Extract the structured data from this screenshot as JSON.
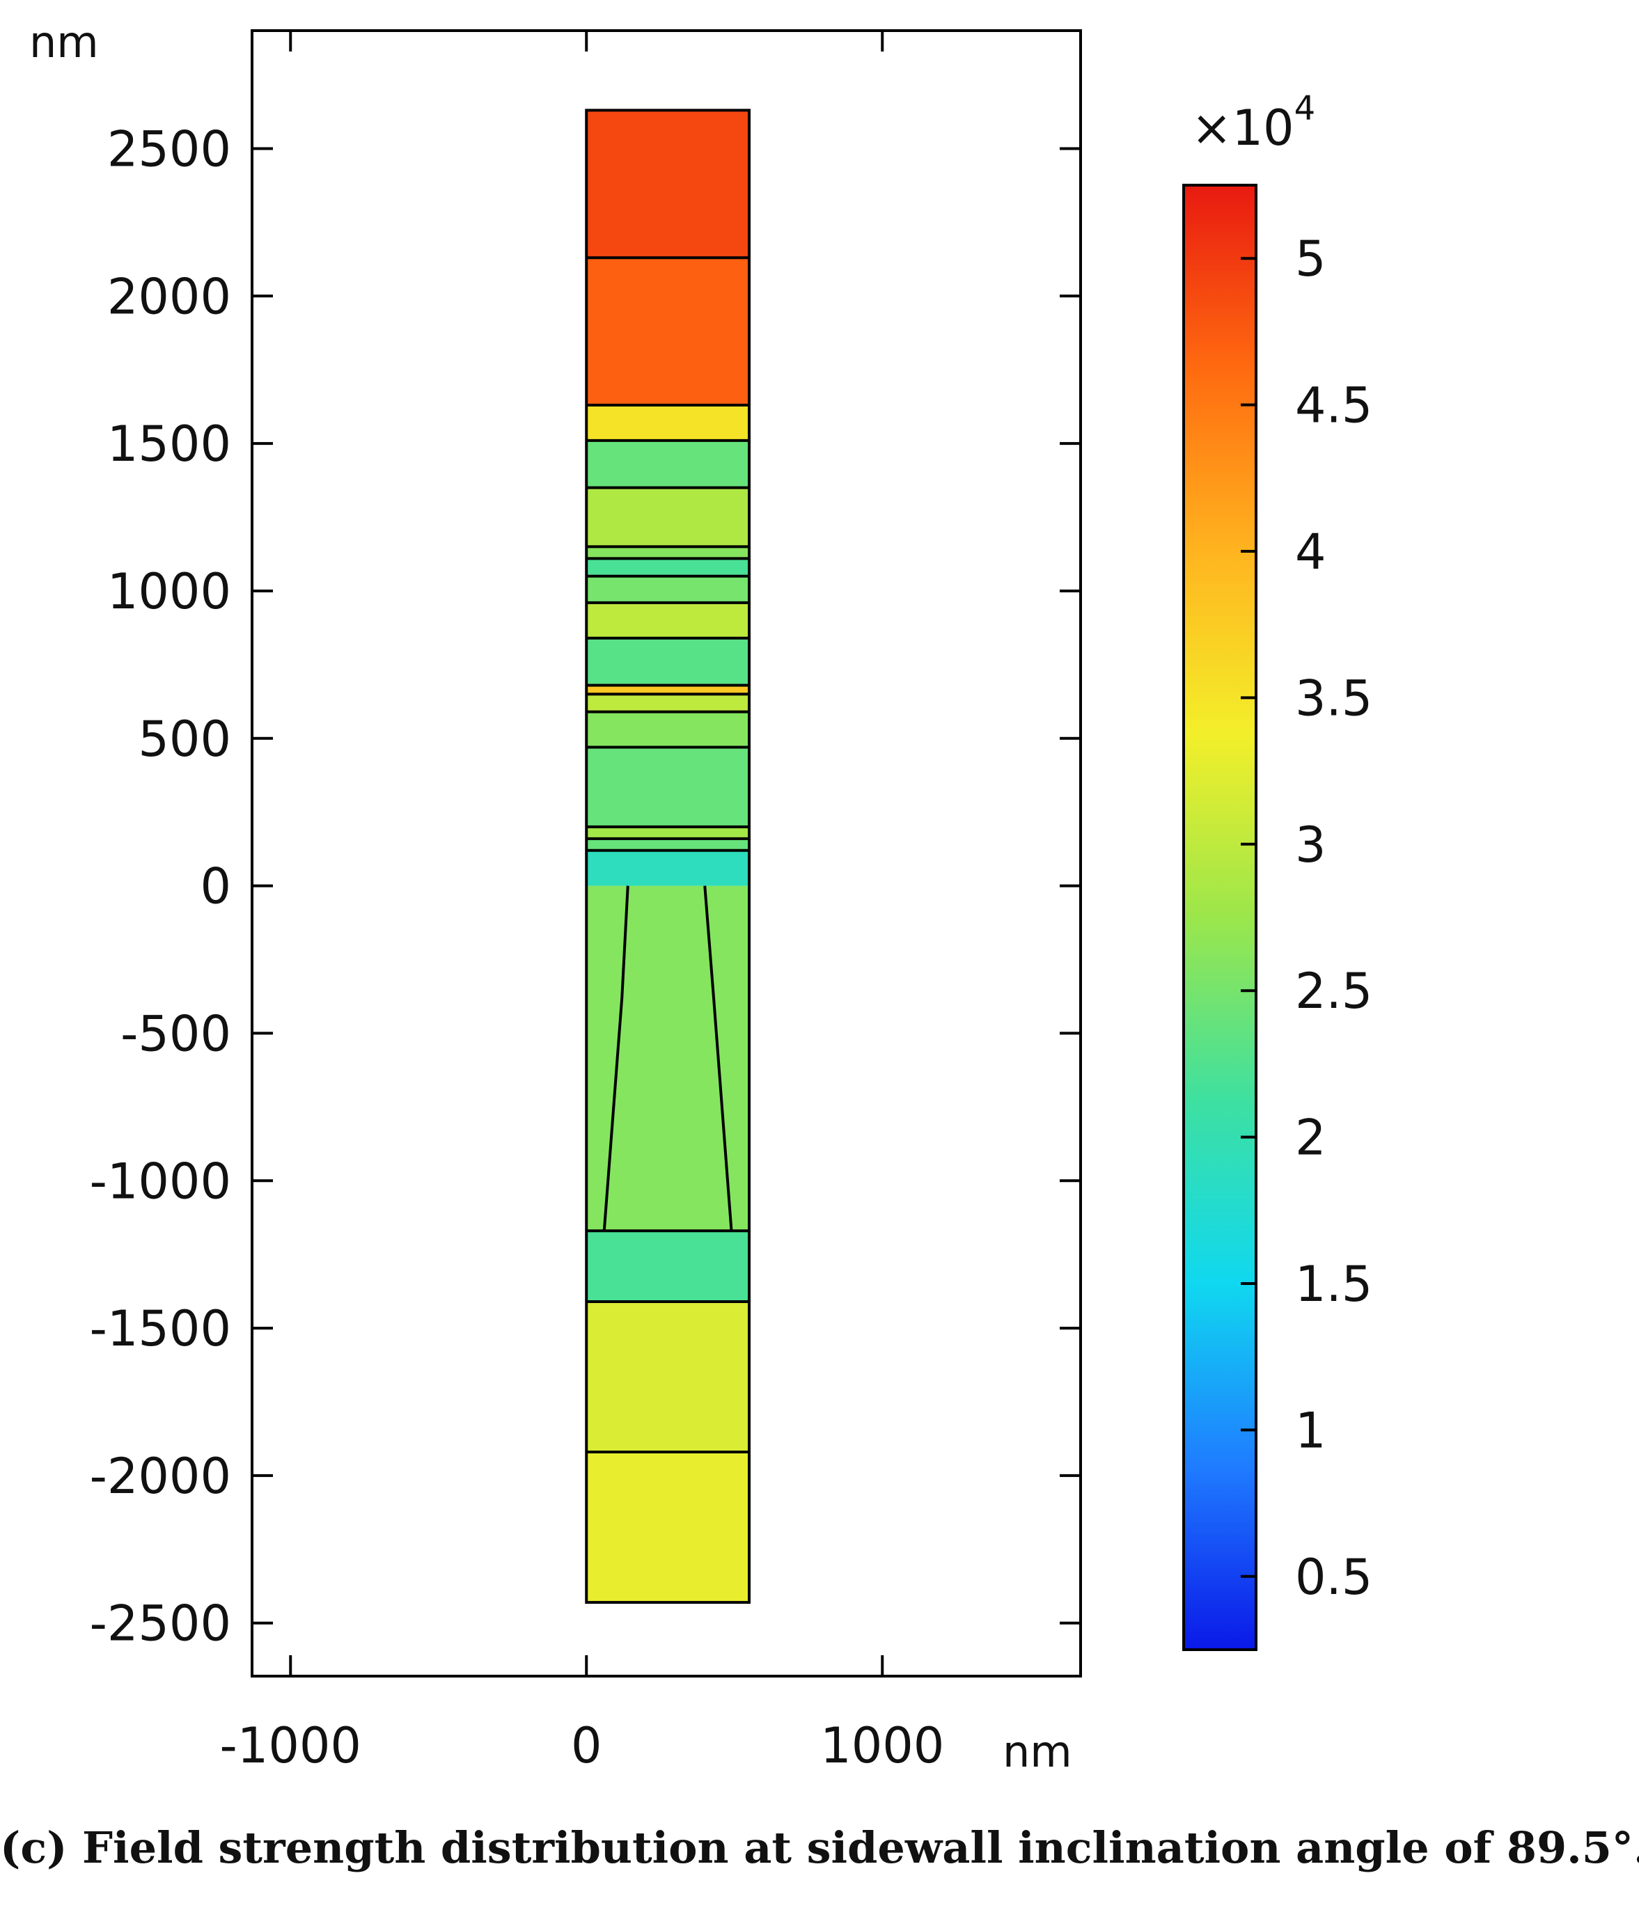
{
  "chart_data": {
    "type": "heatmap",
    "title": "",
    "x_unit": "nm",
    "y_unit": "nm",
    "xlim": [
      -1130,
      1670
    ],
    "ylim": [
      -2680,
      2900
    ],
    "x_ticks": [
      -1000,
      0,
      1000
    ],
    "y_ticks": [
      2500,
      2000,
      1500,
      1000,
      500,
      0,
      -500,
      -1000,
      -1500,
      -2000,
      -2500
    ],
    "x_tick_labels": [
      "-1000",
      "0",
      "1000"
    ],
    "y_tick_labels": [
      "2500",
      "2000",
      "1500",
      "1000",
      "500",
      "0",
      "-500",
      "-1000",
      "-1500",
      "-2000",
      "-2500"
    ],
    "structure": {
      "x_range": [
        0,
        550
      ],
      "y_range": [
        -2430,
        2630
      ],
      "layer_boundaries_y": [
        2130,
        1630,
        1510,
        1350,
        1150,
        1110,
        1050,
        960,
        840,
        680,
        650,
        590,
        470,
        200,
        160,
        120,
        -1170,
        -1410,
        -1920
      ],
      "sidewalls": [
        {
          "side": "left",
          "points": [
            [
              140,
              0
            ],
            [
              120,
              -380
            ],
            [
              60,
              -1170
            ]
          ]
        },
        {
          "side": "right",
          "points": [
            [
              400,
              0
            ],
            [
              430,
              -380
            ],
            [
              490,
              -1170
            ]
          ]
        }
      ]
    },
    "field": {
      "description_units": "field strength",
      "bands": [
        {
          "y": [
            2130,
            2630
          ],
          "value": 4.9
        },
        {
          "y": [
            1630,
            2130
          ],
          "value": 4.7
        },
        {
          "y": [
            1510,
            1630
          ],
          "value": 3.5
        },
        {
          "y": [
            1350,
            1510
          ],
          "value": 2.4
        },
        {
          "y": [
            1150,
            1350
          ],
          "value": 2.9
        },
        {
          "y": [
            1110,
            1150
          ],
          "value": 2.6
        },
        {
          "y": [
            1050,
            1110
          ],
          "value": 2.2
        },
        {
          "y": [
            960,
            1050
          ],
          "value": 2.5
        },
        {
          "y": [
            840,
            960
          ],
          "value": 3.0
        },
        {
          "y": [
            680,
            840
          ],
          "value": 2.3
        },
        {
          "y": [
            650,
            680
          ],
          "value": 3.8
        },
        {
          "y": [
            590,
            650
          ],
          "value": 3.0
        },
        {
          "y": [
            470,
            590
          ],
          "value": 2.6
        },
        {
          "y": [
            200,
            470
          ],
          "value": 2.4
        },
        {
          "y": [
            160,
            200
          ],
          "value": 2.8
        },
        {
          "y": [
            120,
            160
          ],
          "value": 2.4
        },
        {
          "y": [
            0,
            120
          ],
          "value": 1.9
        },
        {
          "y": [
            -1170,
            0
          ],
          "value": 2.6
        },
        {
          "y": [
            -1410,
            -1170
          ],
          "value": 2.2
        },
        {
          "y": [
            -1920,
            -1410
          ],
          "value": 3.2
        },
        {
          "y": [
            -2430,
            -1920
          ],
          "value": 3.3
        }
      ]
    },
    "colorbar": {
      "multiplier_base": "×10",
      "multiplier_exponent": "4",
      "ticks": [
        5,
        4.5,
        4,
        3.5,
        3,
        2.5,
        2,
        1.5,
        1,
        0.5
      ],
      "tick_labels": [
        "5",
        "4.5",
        "4",
        "3.5",
        "3",
        "2.5",
        "2",
        "1.5",
        "1",
        "0.5"
      ],
      "range": [
        0.25,
        5.25
      ],
      "colormap": [
        "#0a19e8",
        "#1f7cff",
        "#10d8f0",
        "#3ee0a0",
        "#9be64b",
        "#f3ef2a",
        "#ffb41f",
        "#ff6a10",
        "#e81a10"
      ]
    },
    "caption": "(c) Field strength distribution at sidewall inclination angle of 89.5°."
  }
}
